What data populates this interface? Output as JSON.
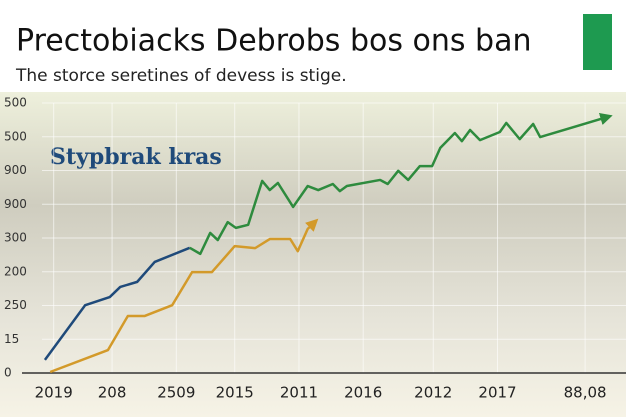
{
  "chart_data": {
    "type": "line",
    "title": "Prectobiacks Debrobs bos ons ban",
    "subtitle": "The storce seretines of devess is stige.",
    "annotation": "Stypbrak kras",
    "xlim": [
      0,
      10
    ],
    "ylim": [
      0,
      8
    ],
    "grid": true,
    "xticks": [
      {
        "value": 0.2,
        "label": "2019"
      },
      {
        "value": 1.2,
        "label": "208"
      },
      {
        "value": 2.3,
        "label": "2509"
      },
      {
        "value": 3.3,
        "label": "2015"
      },
      {
        "value": 4.4,
        "label": "2011"
      },
      {
        "value": 5.5,
        "label": "2016"
      },
      {
        "value": 6.7,
        "label": "2012"
      },
      {
        "value": 7.8,
        "label": "2017"
      },
      {
        "value": 9.3,
        "label": "88,08"
      }
    ],
    "yticks": [
      {
        "value": 0,
        "label": "0"
      },
      {
        "value": 1,
        "label": "15"
      },
      {
        "value": 2,
        "label": "250"
      },
      {
        "value": 3,
        "label": "200"
      },
      {
        "value": 4,
        "label": "300"
      },
      {
        "value": 5,
        "label": "900"
      },
      {
        "value": 6,
        "label": "900"
      },
      {
        "value": 7,
        "label": "500"
      },
      {
        "value": 8,
        "label": "500"
      }
    ],
    "series": [
      {
        "color": "#1f4a7a",
        "arrow": false,
        "x": [
          0.05,
          0.74,
          1.16,
          1.34,
          1.63,
          1.93,
          2.53
        ],
        "values": [
          0.39,
          2.01,
          2.25,
          2.55,
          2.7,
          3.29,
          3.71
        ]
      },
      {
        "color": "#2e8b3e",
        "arrow": true,
        "x": [
          2.53,
          2.71,
          2.88,
          3.01,
          3.18,
          3.32,
          3.53,
          3.77,
          3.9,
          4.04,
          4.3,
          4.55,
          4.73,
          4.98,
          5.1,
          5.22,
          5.79,
          5.92,
          6.1,
          6.27,
          6.47,
          6.68,
          6.82,
          7.07,
          7.19,
          7.33,
          7.5,
          7.84,
          7.95,
          8.18,
          8.41,
          8.53,
          9.69
        ],
        "values": [
          3.71,
          3.53,
          4.15,
          3.94,
          4.47,
          4.3,
          4.39,
          5.69,
          5.42,
          5.63,
          4.92,
          5.54,
          5.42,
          5.6,
          5.39,
          5.54,
          5.72,
          5.6,
          5.99,
          5.72,
          6.13,
          6.13,
          6.67,
          7.11,
          6.87,
          7.2,
          6.9,
          7.14,
          7.41,
          6.93,
          7.38,
          6.99,
          7.59
        ]
      },
      {
        "color": "#d39a2a",
        "arrow": true,
        "x": [
          0.14,
          1.13,
          1.47,
          1.76,
          2.23,
          2.57,
          2.91,
          3.3,
          3.65,
          3.9,
          4.25,
          4.38,
          4.55,
          4.67
        ],
        "values": [
          0.03,
          0.68,
          1.69,
          1.69,
          2.01,
          2.99,
          2.99,
          3.76,
          3.7,
          3.97,
          3.97,
          3.61,
          4.27,
          4.47
        ]
      }
    ]
  }
}
